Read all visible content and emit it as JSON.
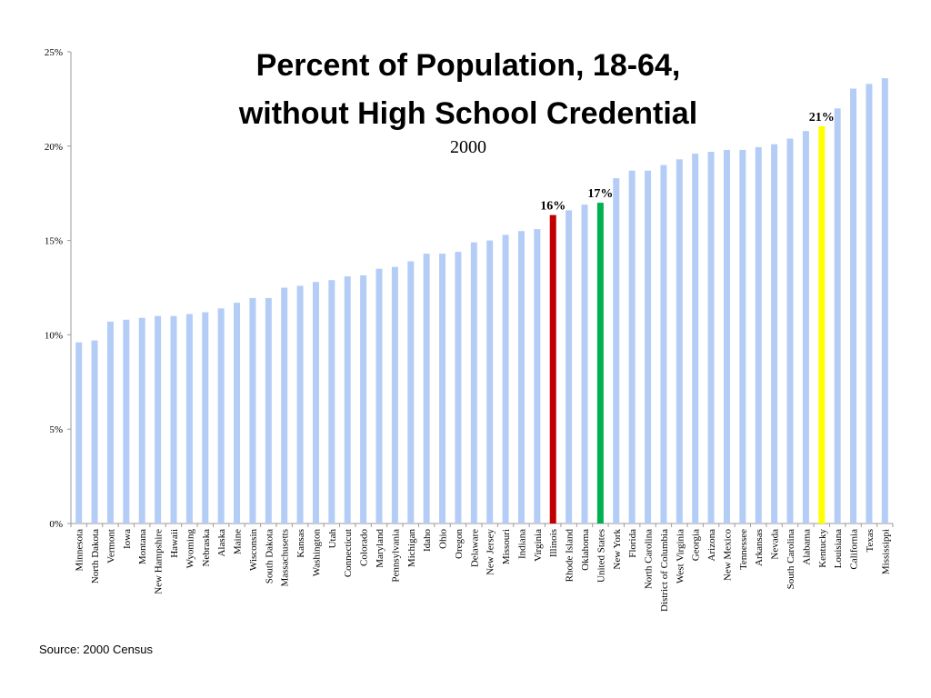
{
  "chart_data": {
    "type": "bar",
    "title_line1": "Percent of Population, 18-64,",
    "title_line2": "without High School Credential",
    "subtitle": "2000",
    "xlabel": "",
    "ylabel": "",
    "ylim": [
      0,
      25
    ],
    "yticks": [
      "0%",
      "5%",
      "10%",
      "15%",
      "20%",
      "25%"
    ],
    "ytick_values": [
      0,
      5,
      10,
      15,
      20,
      25
    ],
    "grid": false,
    "categories": [
      "Minnesota",
      "North Dakota",
      "Vermont",
      "Iowa",
      "Montana",
      "New Hampshire",
      "Hawaii",
      "Wyoming",
      "Nebraska",
      "Alaska",
      "Maine",
      "Wisconsin",
      "South Dakota",
      "Massachusetts",
      "Kansas",
      "Washington",
      "Utah",
      "Connecticut",
      "Colorado",
      "Maryland",
      "Pennsylvania",
      "Michigan",
      "Idaho",
      "Ohio",
      "Oregon",
      "Delaware",
      "New Jersey",
      "Missouri",
      "Indiana",
      "Virginia",
      "Illinois",
      "Rhode Island",
      "Oklahoma",
      "United States",
      "New York",
      "Florida",
      "North Carolina",
      "District of Columbia",
      "West Virginia",
      "Georgia",
      "Arizona",
      "New Mexico",
      "Tennessee",
      "Arkansas",
      "Nevada",
      "South Carolina",
      "Alabama",
      "Kentucky",
      "Louisiana",
      "California",
      "Texas",
      "Mississippi"
    ],
    "values": [
      9.6,
      9.7,
      10.7,
      10.8,
      10.9,
      11.0,
      11.0,
      11.1,
      11.2,
      11.4,
      11.7,
      11.95,
      11.95,
      12.5,
      12.6,
      12.8,
      12.9,
      13.1,
      13.15,
      13.5,
      13.6,
      13.9,
      14.3,
      14.3,
      14.4,
      14.9,
      15.0,
      15.3,
      15.5,
      15.6,
      16.35,
      16.6,
      16.9,
      17.0,
      18.3,
      18.7,
      18.7,
      19.0,
      19.3,
      19.6,
      19.7,
      19.8,
      19.8,
      19.95,
      20.1,
      20.4,
      20.8,
      21.05,
      22.0,
      23.05,
      23.3,
      23.6
    ],
    "highlights": [
      {
        "category": "Illinois",
        "color": "#c00000",
        "label": "16%"
      },
      {
        "category": "United States",
        "color": "#00b050",
        "label": "17%"
      },
      {
        "category": "Kentucky",
        "color": "#ffff00",
        "label": "21%"
      }
    ],
    "bar_color": "#b4cdf6",
    "source": "Source:  2000 Census"
  }
}
